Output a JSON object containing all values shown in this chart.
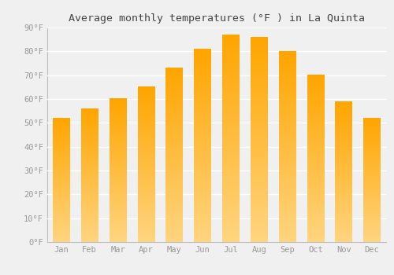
{
  "title": "Average monthly temperatures (°F ) in La Quinta",
  "months": [
    "Jan",
    "Feb",
    "Mar",
    "Apr",
    "May",
    "Jun",
    "Jul",
    "Aug",
    "Sep",
    "Oct",
    "Nov",
    "Dec"
  ],
  "values": [
    52,
    56,
    60,
    65,
    73,
    81,
    87,
    86,
    80,
    70,
    59,
    52
  ],
  "bar_color_top": "#FFA500",
  "bar_color_bottom": "#FFD580",
  "background_color": "#F0F0F0",
  "grid_color": "#FFFFFF",
  "tick_label_color": "#999999",
  "title_color": "#444444",
  "ylim": [
    0,
    90
  ],
  "yticks": [
    0,
    10,
    20,
    30,
    40,
    50,
    60,
    70,
    80,
    90
  ],
  "ytick_labels": [
    "0°F",
    "10°F",
    "20°F",
    "30°F",
    "40°F",
    "50°F",
    "60°F",
    "70°F",
    "80°F",
    "90°F"
  ],
  "title_fontsize": 9.5,
  "tick_fontsize": 7.5,
  "bar_width": 0.6,
  "spine_color": "#BBBBBB"
}
